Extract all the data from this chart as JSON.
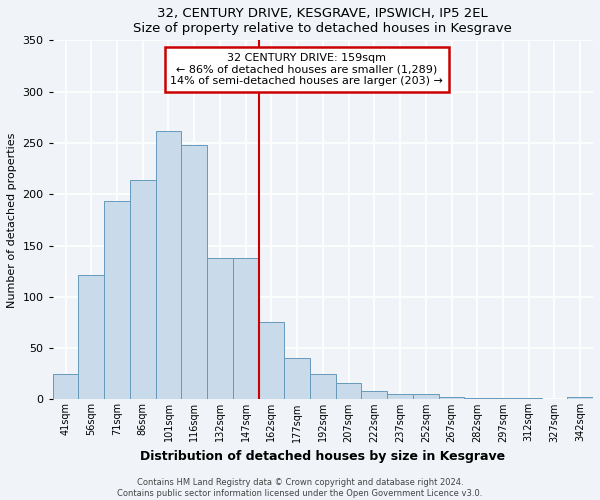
{
  "title": "32, CENTURY DRIVE, KESGRAVE, IPSWICH, IP5 2EL",
  "subtitle": "Size of property relative to detached houses in Kesgrave",
  "xlabel": "Distribution of detached houses by size in Kesgrave",
  "ylabel": "Number of detached properties",
  "bin_labels": [
    "41sqm",
    "56sqm",
    "71sqm",
    "86sqm",
    "101sqm",
    "116sqm",
    "132sqm",
    "147sqm",
    "162sqm",
    "177sqm",
    "192sqm",
    "207sqm",
    "222sqm",
    "237sqm",
    "252sqm",
    "267sqm",
    "282sqm",
    "297sqm",
    "312sqm",
    "327sqm",
    "342sqm"
  ],
  "bar_heights": [
    25,
    121,
    193,
    214,
    262,
    248,
    138,
    138,
    75,
    40,
    25,
    16,
    8,
    5,
    5,
    2,
    1,
    1,
    1,
    0,
    2
  ],
  "bar_color": "#c9daea",
  "bar_edge_color": "#6699bb",
  "property_line_x": 7.5,
  "property_line_color": "#cc0000",
  "annotation_title": "32 CENTURY DRIVE: 159sqm",
  "annotation_line1": "← 86% of detached houses are smaller (1,289)",
  "annotation_line2": "14% of semi-detached houses are larger (203) →",
  "annotation_box_color": "#ffffff",
  "annotation_box_edge_color": "#cc0000",
  "ylim": [
    0,
    350
  ],
  "yticks": [
    0,
    50,
    100,
    150,
    200,
    250,
    300,
    350
  ],
  "footer_line1": "Contains HM Land Registry data © Crown copyright and database right 2024.",
  "footer_line2": "Contains public sector information licensed under the Open Government Licence v3.0.",
  "background_color": "#f0f4f8",
  "grid_color": "#ffffff"
}
